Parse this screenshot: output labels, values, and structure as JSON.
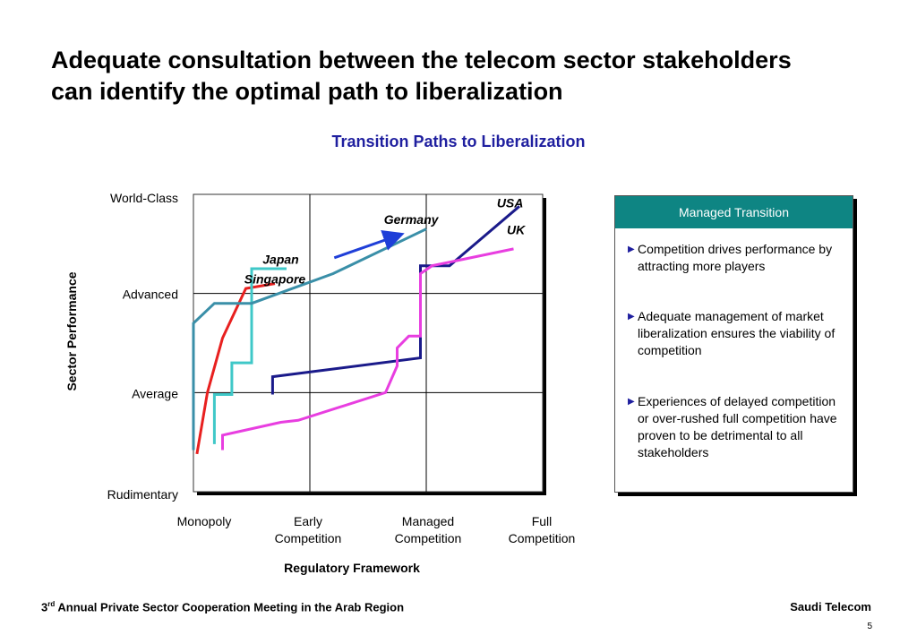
{
  "slide": {
    "title_line1": "Adequate consultation between the telecom sector stakeholders",
    "title_line2": "can identify the optimal path to liberalization",
    "footer_left_prefix": "3",
    "footer_left_sup": "rd",
    "footer_left_text": " Annual Private Sector Cooperation Meeting in the Arab Region",
    "footer_right": "Saudi Telecom",
    "page_number": "5"
  },
  "panel": {
    "header": "Managed Transition",
    "bullets": [
      "Competition drives performance by attracting more players",
      "Adequate management of market liberalization ensures the viability of competition",
      "Experiences of delayed competition or over-rushed full competition have proven to be detrimental to all stakeholders"
    ]
  },
  "chart_data": {
    "type": "line",
    "title": "Transition Paths to Liberalization",
    "xlabel": "Regulatory Framework",
    "ylabel": "Sector Performance",
    "x_categories": [
      "Monopoly",
      "Early\nCompetition",
      "Managed\nCompetition",
      "Full\nCompetition"
    ],
    "y_categories": [
      "Rudimentary",
      "Average",
      "Advanced",
      "World-Class"
    ],
    "xlim": [
      0,
      3
    ],
    "ylim": [
      0,
      3
    ],
    "grid": true,
    "series": [
      {
        "name": "Japan",
        "color": "#e8201f",
        "points": [
          [
            0.03,
            0.38
          ],
          [
            0.12,
            1.0
          ],
          [
            0.25,
            1.55
          ],
          [
            0.45,
            2.05
          ],
          [
            0.7,
            2.1
          ]
        ]
      },
      {
        "name": "Singapore",
        "color": "#3fc8c8",
        "points": [
          [
            0.18,
            0.48
          ],
          [
            0.18,
            0.98
          ],
          [
            0.33,
            0.98
          ],
          [
            0.33,
            1.3
          ],
          [
            0.5,
            1.3
          ],
          [
            0.5,
            2.25
          ],
          [
            0.8,
            2.25
          ]
        ]
      },
      {
        "name": "Germany",
        "color": "#3a8fa8",
        "points": [
          [
            0.0,
            0.42
          ],
          [
            0.0,
            1.7
          ],
          [
            0.18,
            1.9
          ],
          [
            0.5,
            1.9
          ],
          [
            1.2,
            2.2
          ],
          [
            2.0,
            2.65
          ]
        ]
      },
      {
        "name": "USA",
        "color": "#1a1a8a",
        "points": [
          [
            0.68,
            0.98
          ],
          [
            0.68,
            1.16
          ],
          [
            1.95,
            1.35
          ],
          [
            1.95,
            2.28
          ],
          [
            2.2,
            2.28
          ],
          [
            2.8,
            2.88
          ]
        ]
      },
      {
        "name": "UK",
        "color": "#e83ee0",
        "points": [
          [
            0.25,
            0.42
          ],
          [
            0.25,
            0.57
          ],
          [
            0.75,
            0.7
          ],
          [
            0.9,
            0.72
          ],
          [
            1.65,
            1.0
          ],
          [
            1.75,
            1.27
          ],
          [
            1.75,
            1.45
          ],
          [
            1.85,
            1.57
          ],
          [
            1.95,
            1.57
          ],
          [
            1.95,
            2.2
          ],
          [
            2.05,
            2.28
          ],
          [
            2.75,
            2.45
          ]
        ]
      }
    ],
    "annotations": [
      {
        "text": "Japan",
        "x": 0.75,
        "y": 2.3
      },
      {
        "text": "Singapore",
        "x": 0.7,
        "y": 2.1
      },
      {
        "text": "Germany",
        "x": 1.87,
        "y": 2.7
      },
      {
        "text": "USA",
        "x": 2.72,
        "y": 2.87
      },
      {
        "text": "UK",
        "x": 2.77,
        "y": 2.6
      }
    ],
    "arrow": {
      "from": [
        1.21,
        2.36
      ],
      "to": [
        1.77,
        2.59
      ],
      "color": "#1f3fd8"
    }
  }
}
